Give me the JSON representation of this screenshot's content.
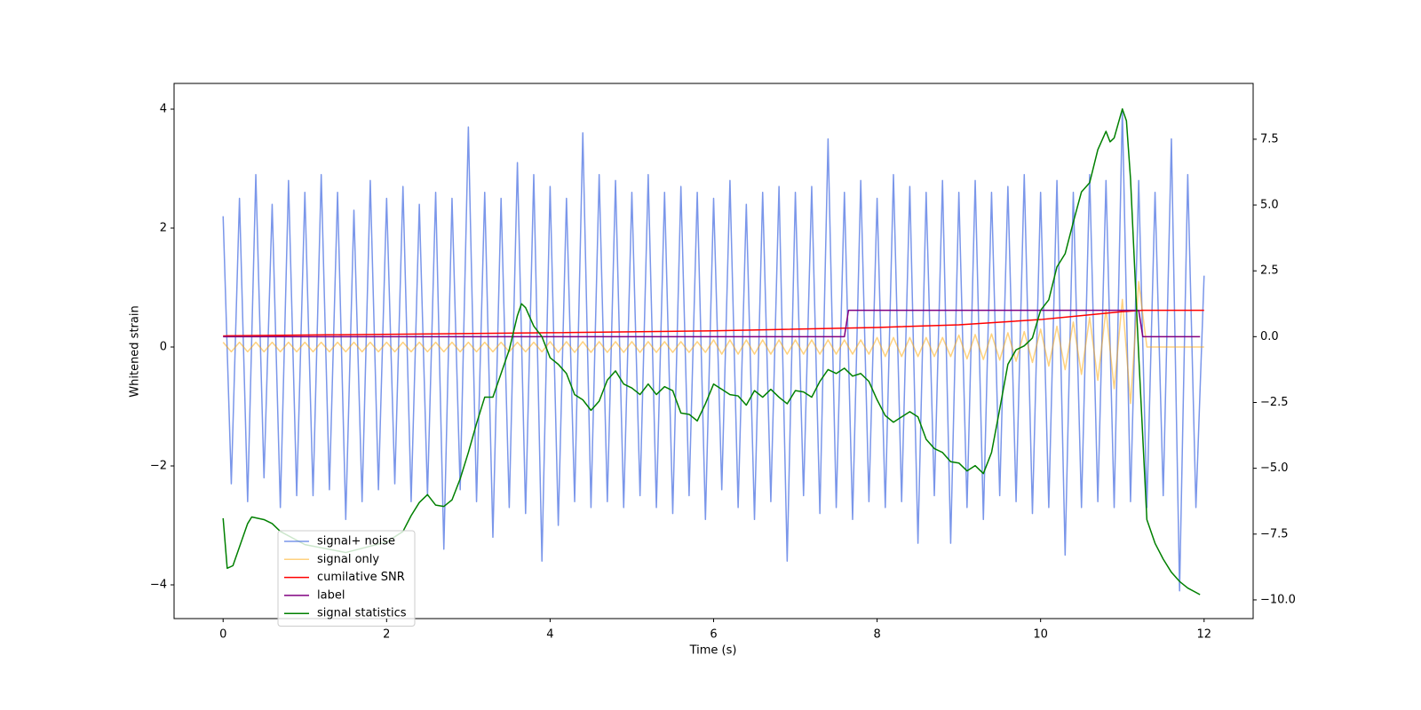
{
  "chart_data": {
    "type": "line",
    "xlabel": "Time (s)",
    "ylabel": "Whitened strain",
    "xlim": [
      -0.6,
      12.6
    ],
    "xticks": [
      0,
      2,
      4,
      6,
      8,
      10,
      12
    ],
    "ylim": [
      -4.567,
      4.433
    ],
    "yticks": [
      {
        "value": -4,
        "label": "−4"
      },
      {
        "value": -2,
        "label": "−2"
      },
      0,
      2,
      4
    ],
    "y2lim": [
      -10.71,
      9.62
    ],
    "y2ticks": [
      {
        "value": -10,
        "label": "−10.0"
      },
      {
        "value": -7.5,
        "label": "−7.5"
      },
      {
        "value": -5,
        "label": "−5.0"
      },
      {
        "value": -2.5,
        "label": "−2.5"
      },
      {
        "value": 0,
        "label": "0.0"
      },
      2.5,
      {
        "value": 5,
        "label": "5.0"
      },
      7.5
    ],
    "legend": "lower left",
    "series": [
      {
        "name": "signal+ noise",
        "color": "#4169e1",
        "alpha": 0.7,
        "axis": "y",
        "x": [
          0,
          0.1,
          0.2,
          0.3,
          0.4,
          0.5,
          0.6,
          0.7,
          0.8,
          0.9,
          1,
          1.1,
          1.2,
          1.3,
          1.4,
          1.5,
          1.6,
          1.7,
          1.8,
          1.9,
          2,
          2.1,
          2.2,
          2.3,
          2.4,
          2.5,
          2.6,
          2.7,
          2.8,
          2.9,
          3,
          3.1,
          3.2,
          3.3,
          3.4,
          3.5,
          3.6,
          3.7,
          3.8,
          3.9,
          4,
          4.1,
          4.2,
          4.3,
          4.4,
          4.5,
          4.6,
          4.7,
          4.8,
          4.9,
          5,
          5.1,
          5.2,
          5.3,
          5.4,
          5.5,
          5.6,
          5.7,
          5.8,
          5.9,
          6,
          6.1,
          6.2,
          6.3,
          6.4,
          6.5,
          6.6,
          6.7,
          6.8,
          6.9,
          7,
          7.1,
          7.2,
          7.3,
          7.4,
          7.5,
          7.6,
          7.7,
          7.8,
          7.9,
          8,
          8.1,
          8.2,
          8.3,
          8.4,
          8.5,
          8.6,
          8.7,
          8.8,
          8.9,
          9,
          9.1,
          9.2,
          9.3,
          9.4,
          9.5,
          9.6,
          9.7,
          9.8,
          9.9,
          10,
          10.1,
          10.2,
          10.3,
          10.4,
          10.5,
          10.6,
          10.7,
          10.8,
          10.9,
          11,
          11.1,
          11.2,
          11.3,
          11.4,
          11.5,
          11.6,
          11.7,
          11.8,
          11.9,
          12
        ],
        "values": [
          2.2,
          -2.3,
          2.5,
          -2.6,
          2.9,
          -2.2,
          2.4,
          -2.7,
          2.8,
          -2.5,
          2.6,
          -2.5,
          2.9,
          -2.4,
          2.6,
          -2.9,
          2.3,
          -2.6,
          2.8,
          -2.4,
          2.5,
          -2.3,
          2.7,
          -2.6,
          2.4,
          -2.5,
          2.6,
          -3.4,
          2.5,
          -2.4,
          3.7,
          -2.6,
          2.6,
          -3.2,
          2.5,
          -2.7,
          3.1,
          -2.8,
          2.9,
          -3.6,
          2.7,
          -3.0,
          2.5,
          -2.6,
          3.6,
          -2.7,
          2.9,
          -2.6,
          2.8,
          -2.7,
          2.6,
          -2.5,
          2.9,
          -2.7,
          2.6,
          -2.8,
          2.7,
          -2.5,
          2.6,
          -2.9,
          2.5,
          -2.4,
          2.8,
          -2.7,
          2.4,
          -2.9,
          2.6,
          -2.6,
          2.7,
          -3.6,
          2.6,
          -2.5,
          2.7,
          -2.8,
          3.5,
          -2.7,
          2.6,
          -2.9,
          2.8,
          -2.6,
          2.5,
          -2.7,
          2.9,
          -2.6,
          2.7,
          -3.3,
          2.6,
          -2.5,
          2.8,
          -3.3,
          2.6,
          -2.7,
          2.8,
          -2.9,
          2.6,
          -2.5,
          2.7,
          -2.6,
          2.9,
          -2.8,
          2.6,
          -2.7,
          2.8,
          -3.5,
          2.6,
          -2.7,
          2.9,
          -2.6,
          2.8,
          -2.7,
          4.0,
          -2.6,
          2.8,
          -2.7,
          2.6,
          -2.5,
          3.5,
          -4.1,
          2.9,
          -2.7,
          1.2
        ]
      },
      {
        "name": "signal only",
        "color": "#ffa500",
        "alpha": 0.5,
        "axis": "y",
        "x": [
          0,
          0.1,
          0.2,
          0.3,
          0.4,
          0.5,
          0.6,
          0.7,
          0.8,
          0.9,
          1,
          1.1,
          1.2,
          1.3,
          1.4,
          1.5,
          1.6,
          1.7,
          1.8,
          1.9,
          2,
          2.1,
          2.2,
          2.3,
          2.4,
          2.5,
          2.6,
          2.7,
          2.8,
          2.9,
          3,
          3.1,
          3.2,
          3.3,
          3.4,
          3.5,
          3.6,
          3.7,
          3.8,
          3.9,
          4,
          4.1,
          4.2,
          4.3,
          4.4,
          4.5,
          4.6,
          4.7,
          4.8,
          4.9,
          5,
          5.1,
          5.2,
          5.3,
          5.4,
          5.5,
          5.6,
          5.7,
          5.8,
          5.9,
          6,
          6.1,
          6.2,
          6.3,
          6.4,
          6.5,
          6.6,
          6.7,
          6.8,
          6.9,
          7,
          7.1,
          7.2,
          7.3,
          7.4,
          7.5,
          7.6,
          7.7,
          7.8,
          7.9,
          8,
          8.1,
          8.2,
          8.3,
          8.4,
          8.5,
          8.6,
          8.7,
          8.8,
          8.9,
          9,
          9.1,
          9.2,
          9.3,
          9.4,
          9.5,
          9.6,
          9.7,
          9.8,
          9.9,
          10,
          10.1,
          10.2,
          10.3,
          10.4,
          10.5,
          10.6,
          10.7,
          10.8,
          10.9,
          11,
          11.1,
          11.2,
          11.3,
          11.4,
          11.5,
          11.6,
          11.7,
          11.8,
          11.9,
          12
        ],
        "values": [
          0.08,
          -0.08,
          0.08,
          -0.08,
          0.08,
          -0.08,
          0.08,
          -0.08,
          0.08,
          -0.08,
          0.08,
          -0.08,
          0.08,
          -0.08,
          0.08,
          -0.08,
          0.08,
          -0.08,
          0.08,
          -0.08,
          0.08,
          -0.08,
          0.08,
          -0.08,
          0.08,
          -0.08,
          0.08,
          -0.08,
          0.08,
          -0.08,
          0.08,
          -0.08,
          0.08,
          -0.08,
          0.08,
          -0.08,
          0.08,
          -0.08,
          0.08,
          -0.08,
          0.09,
          -0.09,
          0.09,
          -0.09,
          0.09,
          -0.09,
          0.09,
          -0.09,
          0.09,
          -0.09,
          0.09,
          -0.09,
          0.09,
          -0.09,
          0.09,
          -0.09,
          0.09,
          -0.09,
          0.09,
          -0.09,
          0.12,
          -0.12,
          0.12,
          -0.12,
          0.12,
          -0.12,
          0.12,
          -0.12,
          0.12,
          -0.12,
          0.12,
          -0.12,
          0.12,
          -0.12,
          0.12,
          -0.12,
          0.12,
          -0.12,
          0.12,
          -0.12,
          0.16,
          -0.16,
          0.16,
          -0.16,
          0.16,
          -0.16,
          0.16,
          -0.16,
          0.16,
          -0.16,
          0.2,
          -0.2,
          0.21,
          -0.21,
          0.22,
          -0.22,
          0.24,
          -0.24,
          0.26,
          -0.26,
          0.3,
          -0.32,
          0.35,
          -0.38,
          0.42,
          -0.46,
          0.5,
          -0.56,
          0.63,
          -0.7,
          0.8,
          -0.95,
          1.1,
          0,
          0,
          0,
          0,
          0,
          0,
          0,
          0
        ]
      },
      {
        "name": "cumilative SNR",
        "color": "#ff0000",
        "alpha": 1,
        "axis": "y2",
        "x": [
          0,
          4,
          6,
          8,
          9,
          10,
          10.5,
          11,
          11.25,
          12
        ],
        "values": [
          0.03,
          0.15,
          0.22,
          0.35,
          0.45,
          0.65,
          0.8,
          0.95,
          1.0,
          1.0
        ]
      },
      {
        "name": "label",
        "color": "#800080",
        "alpha": 1,
        "axis": "y2",
        "x": [
          0,
          7.6,
          7.65,
          11.2,
          11.25,
          11.95
        ],
        "values": [
          0,
          0,
          1,
          1,
          0,
          0
        ]
      },
      {
        "name": "signal statistics",
        "color": "#008000",
        "alpha": 1,
        "axis": "y2",
        "x": [
          0,
          0.05,
          0.12,
          0.3,
          0.35,
          0.5,
          0.6,
          0.7,
          1,
          1.5,
          2,
          2.2,
          2.3,
          2.4,
          2.5,
          2.6,
          2.7,
          2.8,
          2.9,
          3,
          3.1,
          3.2,
          3.3,
          3.4,
          3.5,
          3.6,
          3.65,
          3.7,
          3.8,
          3.9,
          4,
          4.1,
          4.2,
          4.3,
          4.4,
          4.5,
          4.6,
          4.7,
          4.8,
          4.9,
          5,
          5.1,
          5.2,
          5.3,
          5.4,
          5.5,
          5.6,
          5.7,
          5.8,
          5.9,
          6,
          6.1,
          6.2,
          6.3,
          6.4,
          6.5,
          6.6,
          6.7,
          6.8,
          6.9,
          7,
          7.1,
          7.2,
          7.3,
          7.4,
          7.5,
          7.6,
          7.7,
          7.8,
          7.9,
          8,
          8.1,
          8.2,
          8.3,
          8.4,
          8.5,
          8.6,
          8.7,
          8.8,
          8.9,
          9,
          9.1,
          9.2,
          9.3,
          9.4,
          9.5,
          9.6,
          9.7,
          9.8,
          9.9,
          10,
          10.1,
          10.2,
          10.3,
          10.4,
          10.5,
          10.6,
          10.7,
          10.8,
          10.85,
          10.9,
          11,
          11.05,
          11.1,
          11.2,
          11.3,
          11.4,
          11.5,
          11.6,
          11.7,
          11.8,
          11.95
        ],
        "values": [
          -6.9,
          -8.8,
          -8.7,
          -7.1,
          -6.85,
          -6.95,
          -7.1,
          -7.4,
          -7.9,
          -8.2,
          -7.8,
          -7.4,
          -6.8,
          -6.3,
          -6.0,
          -6.4,
          -6.45,
          -6.2,
          -5.4,
          -4.4,
          -3.3,
          -2.3,
          -2.3,
          -1.4,
          -0.5,
          0.8,
          1.25,
          1.1,
          0.4,
          0.0,
          -0.8,
          -1.05,
          -1.4,
          -2.2,
          -2.4,
          -2.8,
          -2.45,
          -1.65,
          -1.3,
          -1.8,
          -1.95,
          -2.2,
          -1.8,
          -2.2,
          -1.9,
          -2.05,
          -2.9,
          -2.95,
          -3.2,
          -2.55,
          -1.8,
          -2.0,
          -2.2,
          -2.25,
          -2.6,
          -2.05,
          -2.3,
          -2.0,
          -2.3,
          -2.55,
          -2.05,
          -2.1,
          -2.3,
          -1.7,
          -1.25,
          -1.4,
          -1.2,
          -1.5,
          -1.4,
          -1.7,
          -2.4,
          -3.0,
          -3.25,
          -3.05,
          -2.85,
          -3.05,
          -3.9,
          -4.25,
          -4.4,
          -4.75,
          -4.8,
          -5.1,
          -4.9,
          -5.2,
          -4.4,
          -2.75,
          -1.05,
          -0.5,
          -0.35,
          -0.05,
          1.0,
          1.4,
          2.65,
          3.15,
          4.35,
          5.5,
          5.85,
          7.1,
          7.8,
          7.4,
          7.55,
          8.65,
          8.2,
          6.0,
          -0.7,
          -6.95,
          -7.85,
          -8.45,
          -8.95,
          -9.3,
          -9.55,
          -9.8
        ]
      }
    ]
  }
}
